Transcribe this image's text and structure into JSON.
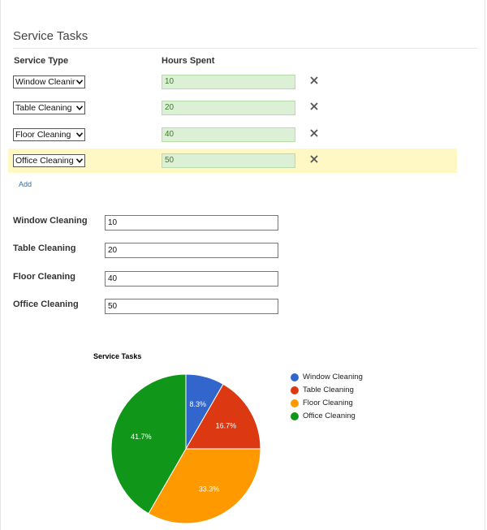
{
  "form": {
    "title": "Service Tasks",
    "col_service_type": "Service Type",
    "col_hours_spent": "Hours Spent",
    "rows": [
      {
        "service_type": "Window Cleaning",
        "hours": "10"
      },
      {
        "service_type": "Table Cleaning",
        "hours": "20"
      },
      {
        "service_type": "Floor Cleaning",
        "hours": "40"
      },
      {
        "service_type": "Office Cleaning",
        "hours": "50"
      }
    ],
    "add_label": "Add"
  },
  "summary": [
    {
      "label": "Window Cleaning",
      "value": "10"
    },
    {
      "label": "Table Cleaning",
      "value": "20"
    },
    {
      "label": "Floor Cleaning",
      "value": "40"
    },
    {
      "label": "Office Cleaning",
      "value": "50"
    }
  ],
  "chart_data": {
    "type": "pie",
    "title": "Service Tasks",
    "categories": [
      "Window Cleaning",
      "Table Cleaning",
      "Floor Cleaning",
      "Office Cleaning"
    ],
    "values": [
      10,
      20,
      40,
      50
    ],
    "labels": [
      "8.3%",
      "16.7%",
      "33.3%",
      "41.7%"
    ],
    "colors": [
      "#3366cc",
      "#dc3912",
      "#ff9900",
      "#109618"
    ],
    "legend": "right"
  },
  "icons": {
    "remove": "close-icon",
    "dropdown": "chevron-down-icon"
  }
}
